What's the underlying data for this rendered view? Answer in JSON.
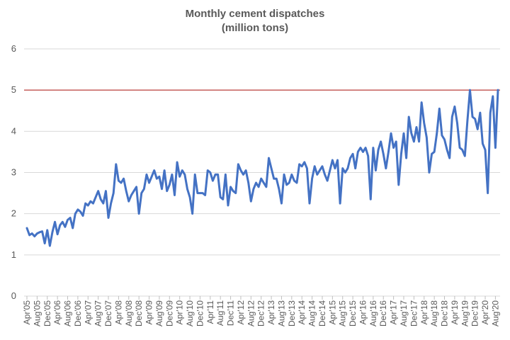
{
  "chart_data": {
    "type": "line",
    "title": "Monthly cement dispatches",
    "subtitle": "(million tons)",
    "xlabel": "",
    "ylabel": "",
    "ylim": [
      0,
      6
    ],
    "yticks": [
      "0",
      "1",
      "2",
      "3",
      "4",
      "5",
      "6"
    ],
    "grid": true,
    "x_tick_labels": [
      "Apr'05",
      "Aug'05",
      "Dec'05",
      "Apr'06",
      "Aug'06",
      "Dec'06",
      "Apr'07",
      "Aug'07",
      "Dec'07",
      "Apr'08",
      "Aug'08",
      "Dec'08",
      "Apr'09",
      "Aug'09",
      "Dec'09",
      "Apr'10",
      "Aug'10",
      "Dec'10",
      "Apr'11",
      "Aug'11",
      "Dec'11",
      "Apr'12",
      "Aug'12",
      "Dec'12",
      "Apr'13",
      "Aug'13",
      "Dec'13",
      "Apr'14",
      "Aug'14",
      "Dec'14",
      "Apr'15",
      "Aug'15",
      "Dec'15",
      "Apr'16",
      "Aug'16",
      "Dec'16",
      "Apr'17",
      "Aug'17",
      "Dec'17",
      "Apr'18",
      "Aug'18",
      "Dec'18",
      "Apr'19",
      "Aug'19",
      "Dec'19",
      "Apr'20",
      "Aug'20"
    ],
    "reference_line": {
      "value": 5,
      "color": "#c0504d"
    },
    "series": [
      {
        "name": "Monthly cement dispatches",
        "color": "#4472c4",
        "values": [
          1.65,
          1.48,
          1.52,
          1.45,
          1.52,
          1.55,
          1.57,
          1.28,
          1.6,
          1.22,
          1.55,
          1.8,
          1.5,
          1.72,
          1.8,
          1.68,
          1.85,
          1.9,
          1.65,
          2.0,
          2.1,
          2.05,
          1.95,
          2.25,
          2.2,
          2.3,
          2.25,
          2.4,
          2.55,
          2.35,
          2.25,
          2.55,
          1.9,
          2.25,
          2.5,
          3.2,
          2.8,
          2.75,
          2.85,
          2.55,
          2.3,
          2.45,
          2.55,
          2.65,
          2.0,
          2.5,
          2.6,
          2.95,
          2.75,
          2.9,
          3.05,
          2.85,
          2.9,
          2.6,
          3.05,
          2.55,
          2.7,
          2.95,
          2.45,
          3.25,
          2.9,
          3.05,
          2.95,
          2.6,
          2.4,
          2.0,
          2.95,
          2.5,
          2.5,
          2.5,
          2.45,
          3.05,
          3.0,
          2.8,
          2.95,
          2.95,
          2.4,
          2.35,
          2.95,
          2.2,
          2.65,
          2.55,
          2.5,
          3.2,
          3.05,
          2.95,
          3.05,
          2.75,
          2.3,
          2.6,
          2.75,
          2.65,
          2.85,
          2.75,
          2.65,
          3.35,
          3.1,
          2.85,
          2.85,
          2.6,
          2.25,
          2.95,
          2.7,
          2.75,
          2.95,
          2.8,
          2.75,
          3.2,
          3.15,
          3.25,
          3.1,
          2.25,
          2.85,
          3.15,
          2.95,
          3.05,
          3.15,
          2.95,
          2.8,
          3.05,
          3.3,
          3.1,
          3.3,
          2.25,
          3.1,
          3.0,
          3.1,
          3.35,
          3.45,
          3.1,
          3.5,
          3.6,
          3.5,
          3.6,
          3.4,
          2.35,
          3.6,
          3.05,
          3.55,
          3.75,
          3.45,
          3.1,
          3.5,
          3.95,
          3.6,
          3.75,
          2.7,
          3.45,
          3.95,
          3.35,
          4.35,
          3.95,
          3.75,
          4.1,
          3.75,
          4.7,
          4.2,
          3.85,
          3.0,
          3.45,
          3.5,
          3.95,
          4.55,
          3.9,
          3.8,
          3.55,
          3.35,
          4.35,
          4.6,
          4.2,
          3.6,
          3.55,
          3.4,
          4.25,
          5.0,
          4.35,
          4.3,
          4.05,
          4.45,
          3.7,
          3.55,
          2.5,
          4.45,
          4.85,
          3.6,
          5.0
        ]
      }
    ]
  }
}
